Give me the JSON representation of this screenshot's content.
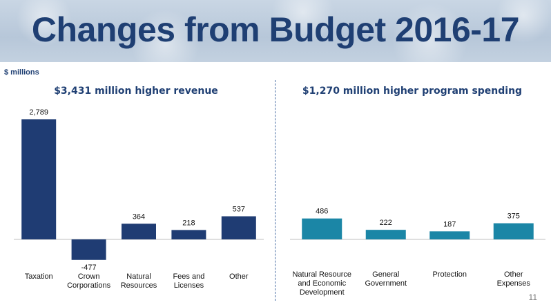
{
  "slide": {
    "title": "Changes from Budget 2016-17",
    "unit_label": "$ millions",
    "page_number": "11"
  },
  "chart_data": [
    {
      "type": "bar",
      "title": "$3,431 million higher revenue",
      "categories": [
        [
          "Taxation"
        ],
        [
          "Crown",
          "Corporations"
        ],
        [
          "Natural",
          "Resources"
        ],
        [
          "Fees and",
          "Licenses"
        ],
        [
          "Other"
        ]
      ],
      "values": [
        2789,
        -477,
        364,
        218,
        537
      ],
      "value_labels": [
        "2,789",
        "-477",
        "364",
        "218",
        "537"
      ],
      "color": "#1f3c73"
    },
    {
      "type": "bar",
      "title": "$1,270 million higher program spending",
      "categories": [
        [
          "Natural Resource",
          "and Economic",
          "Development"
        ],
        [
          "General",
          "Government"
        ],
        [
          "Protection"
        ],
        [
          "Other",
          "Expenses"
        ]
      ],
      "values": [
        486,
        222,
        187,
        375
      ],
      "value_labels": [
        "486",
        "222",
        "187",
        "375"
      ],
      "color": "#1b86a6"
    }
  ]
}
